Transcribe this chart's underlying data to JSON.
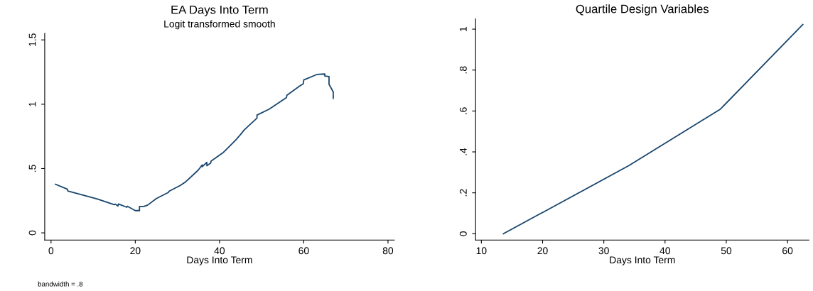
{
  "chart_data": [
    {
      "type": "line",
      "title": "EA Days Into Term",
      "subtitle": "Logit transformed smooth",
      "xlabel": "Days Into Term",
      "annotations": [
        "bandwidth = .8"
      ],
      "xlim": [
        -1.5,
        81.5
      ],
      "ylim": [
        -0.056,
        1.55
      ],
      "xticks": [
        0,
        20,
        40,
        60,
        80
      ],
      "yticks": [
        0,
        {
          "value": 0.5,
          "label": ".5"
        },
        1,
        {
          "value": 1.5,
          "label": "1.5"
        }
      ],
      "grid": false,
      "legend": false,
      "series": [
        {
          "color": "#1a476f",
          "x": [
            1.04,
            3.9,
            4.0,
            11,
            15,
            15.3,
            15.9,
            16,
            18,
            18.1,
            20,
            21,
            21,
            22,
            22.9,
            25,
            27.9,
            28,
            30.7,
            32,
            34.9,
            35.9,
            35.9,
            37,
            37,
            37.9,
            38,
            40.8,
            42,
            44,
            44.9,
            45.9,
            48.9,
            48.9,
            51.8,
            55.9,
            56,
            58.9,
            59.9,
            60,
            63.1,
            65,
            65,
            66,
            66,
            67,
            67
          ],
          "values": [
            0.378,
            0.339,
            0.325,
            0.263,
            0.219,
            0.223,
            0.209,
            0.225,
            0.199,
            0.207,
            0.173,
            0.173,
            0.205,
            0.205,
            0.215,
            0.267,
            0.315,
            0.323,
            0.369,
            0.398,
            0.486,
            0.528,
            0.514,
            0.548,
            0.522,
            0.542,
            0.558,
            0.622,
            0.661,
            0.727,
            0.761,
            0.801,
            0.892,
            0.916,
            0.962,
            1.052,
            1.07,
            1.139,
            1.159,
            1.189,
            1.231,
            1.235,
            1.219,
            1.215,
            1.155,
            1.096,
            1.046
          ]
        }
      ]
    },
    {
      "type": "line",
      "title": "Quartile Design Variables",
      "xlabel": "Days Into Term",
      "xlim": [
        9.06,
        63.5
      ],
      "ylim": [
        -0.031,
        1.05
      ],
      "xticks": [
        10,
        20,
        30,
        40,
        50,
        60
      ],
      "yticks": [
        0,
        {
          "value": 0.2,
          "label": ".2"
        },
        {
          "value": 0.4,
          "label": ".4"
        },
        {
          "value": 0.6,
          "label": ".6"
        },
        {
          "value": 0.8,
          "label": ".8"
        },
        1
      ],
      "grid": false,
      "legend": false,
      "series": [
        {
          "color": "#1a476f",
          "x": [
            13.6,
            34.1,
            49.0,
            62.5
          ],
          "values": [
            0,
            0.333,
            0.608,
            1.023
          ]
        }
      ]
    }
  ]
}
